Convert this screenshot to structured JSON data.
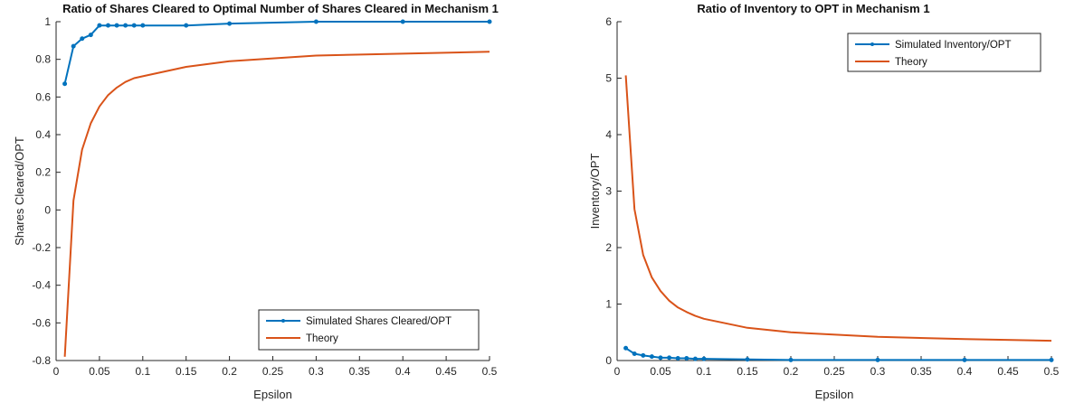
{
  "chart_data": [
    {
      "type": "line",
      "title": "Ratio of Shares Cleared to Optimal Number of Shares Cleared in Mechanism 1",
      "xlabel": "Epsilon",
      "ylabel": "Shares Cleared/OPT",
      "xlim": [
        0,
        0.5
      ],
      "ylim": [
        -0.8,
        1
      ],
      "xticks": [
        "0",
        "0.05",
        "0.1",
        "0.15",
        "0.2",
        "0.25",
        "0.3",
        "0.35",
        "0.4",
        "0.45",
        "0.5"
      ],
      "yticks": [
        "-0.8",
        "-0.6",
        "-0.4",
        "-0.2",
        "0",
        "0.2",
        "0.4",
        "0.6",
        "0.8",
        "1"
      ],
      "legend_position": "bottom-right",
      "grid": false,
      "series": [
        {
          "name": "Simulated Shares Cleared/OPT",
          "color": "#0072BD",
          "markers": true,
          "x": [
            0.01,
            0.02,
            0.03,
            0.04,
            0.05,
            0.06,
            0.07,
            0.08,
            0.09,
            0.1,
            0.15,
            0.2,
            0.3,
            0.4,
            0.5
          ],
          "y": [
            0.67,
            0.87,
            0.91,
            0.93,
            0.98,
            0.98,
            0.98,
            0.98,
            0.98,
            0.98,
            0.98,
            0.99,
            1.0,
            1.0,
            1.0
          ]
        },
        {
          "name": "Theory",
          "color": "#D95319",
          "markers": false,
          "x": [
            0.01,
            0.02,
            0.03,
            0.04,
            0.05,
            0.06,
            0.07,
            0.08,
            0.09,
            0.1,
            0.15,
            0.2,
            0.3,
            0.4,
            0.5
          ],
          "y": [
            -0.78,
            0.05,
            0.32,
            0.46,
            0.55,
            0.61,
            0.65,
            0.68,
            0.7,
            0.71,
            0.76,
            0.79,
            0.82,
            0.83,
            0.84
          ]
        }
      ]
    },
    {
      "type": "line",
      "title": "Ratio of Inventory to OPT in Mechanism 1",
      "xlabel": "Epsilon",
      "ylabel": "Inventory/OPT",
      "xlim": [
        0,
        0.5
      ],
      "ylim": [
        0,
        6
      ],
      "xticks": [
        "0",
        "0.05",
        "0.1",
        "0.15",
        "0.2",
        "0.25",
        "0.3",
        "0.35",
        "0.4",
        "0.45",
        "0.5"
      ],
      "yticks": [
        "0",
        "1",
        "2",
        "3",
        "4",
        "5",
        "6"
      ],
      "legend_position": "top-right",
      "grid": false,
      "series": [
        {
          "name": "Simulated Inventory/OPT",
          "color": "#0072BD",
          "markers": true,
          "x": [
            0.01,
            0.02,
            0.03,
            0.04,
            0.05,
            0.06,
            0.07,
            0.08,
            0.09,
            0.1,
            0.15,
            0.2,
            0.3,
            0.4,
            0.5
          ],
          "y": [
            0.22,
            0.12,
            0.09,
            0.07,
            0.05,
            0.05,
            0.04,
            0.04,
            0.03,
            0.03,
            0.02,
            0.01,
            0.01,
            0.01,
            0.01
          ]
        },
        {
          "name": "Theory",
          "color": "#D95319",
          "markers": false,
          "x": [
            0.01,
            0.02,
            0.03,
            0.04,
            0.05,
            0.06,
            0.07,
            0.08,
            0.09,
            0.1,
            0.15,
            0.2,
            0.3,
            0.4,
            0.5
          ],
          "y": [
            5.05,
            2.68,
            1.87,
            1.47,
            1.23,
            1.06,
            0.94,
            0.86,
            0.79,
            0.74,
            0.58,
            0.5,
            0.42,
            0.38,
            0.35
          ]
        }
      ]
    }
  ]
}
